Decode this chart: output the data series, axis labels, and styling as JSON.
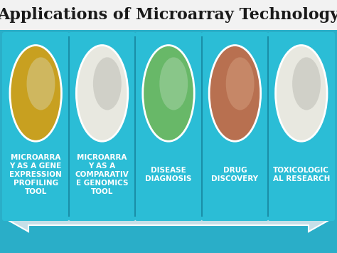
{
  "title": "Applications of Microarray Technology",
  "title_fontsize": 16,
  "title_color": "#1a1a1a",
  "bg_top_color": "#f0f0f0",
  "bg_bottom_color": "#2aaec8",
  "card_color": "#2aaec8",
  "card_border_color": "#1a8fa8",
  "card_gap_color": "#1a8fa8",
  "arrow_color": "#c5dfe8",
  "arrow_edge_color": "#ffffff",
  "text_color": "white",
  "cards": [
    {
      "label": "MICROARRA\nY AS A GENE\nEXPRESSION\nPROFILING\nTOOL",
      "img_color": "#c8a020",
      "img_color2": "#d4c88a"
    },
    {
      "label": "MICROARRA\nY AS A\nCOMPARATIV\nE GENOMICS\nTOOL",
      "img_color": "#e8e8e0",
      "img_color2": "#c0c0b8"
    },
    {
      "label": "DISEASE\nDIAGNOSIS",
      "img_color": "#68b868",
      "img_color2": "#a0d0a0"
    },
    {
      "label": "DRUG\nDISCOVERY",
      "img_color": "#b87050",
      "img_color2": "#d09878"
    },
    {
      "label": "TOXICOLOGIC\nAL RESEARCH",
      "img_color": "#e8e8e0",
      "img_color2": "#c0c0b8"
    }
  ],
  "n_cards": 5,
  "label_fontsize": 7.5
}
